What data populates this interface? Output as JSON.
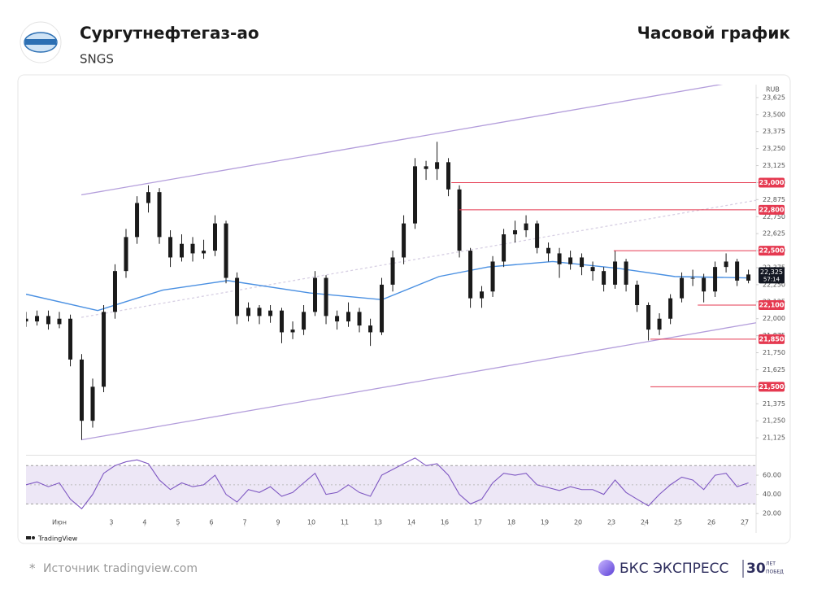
{
  "header": {
    "title": "Сургутнефтегаз-ао",
    "ticker": "SNGS",
    "chart_kind": "Часовой график"
  },
  "footer": {
    "asterisk": "*",
    "source": "Источник tradingview.com",
    "brand": "БКС ЭКСПРЕСС",
    "anniversary": "30",
    "anniversary_word1": "ЛЕТ",
    "anniversary_word2": "ПОБЕД"
  },
  "chart_data": {
    "type": "candlestick",
    "currency": "RUB",
    "watermark": "TradingView",
    "color": "#1a1a1a",
    "xlim": [
      -1,
      20.9
    ],
    "ylim": [
      21.0,
      23.72
    ],
    "xticks": [
      {
        "value": 0,
        "label": "Июн"
      },
      {
        "value": 1.56,
        "label": "3"
      },
      {
        "value": 2.56,
        "label": "4"
      },
      {
        "value": 3.56,
        "label": "5"
      },
      {
        "value": 4.56,
        "label": "6"
      },
      {
        "value": 5.56,
        "label": "7"
      },
      {
        "value": 6.56,
        "label": "9"
      },
      {
        "value": 7.56,
        "label": "10"
      },
      {
        "value": 8.56,
        "label": "11"
      },
      {
        "value": 9.56,
        "label": "13"
      },
      {
        "value": 10.56,
        "label": "14"
      },
      {
        "value": 11.56,
        "label": "16"
      },
      {
        "value": 12.56,
        "label": "17"
      },
      {
        "value": 13.56,
        "label": "18"
      },
      {
        "value": 14.56,
        "label": "19"
      },
      {
        "value": 15.56,
        "label": "20"
      },
      {
        "value": 16.56,
        "label": "23"
      },
      {
        "value": 17.56,
        "label": "24"
      },
      {
        "value": 18.56,
        "label": "25"
      },
      {
        "value": 19.56,
        "label": "26"
      },
      {
        "value": 20.56,
        "label": "27"
      }
    ],
    "yticks": [
      {
        "value": 21.125,
        "label": "21,125"
      },
      {
        "value": 21.25,
        "label": "21,250"
      },
      {
        "value": 21.375,
        "label": "21,375"
      },
      {
        "value": 21.5,
        "label": "21,500"
      },
      {
        "value": 21.625,
        "label": "21,625"
      },
      {
        "value": 21.75,
        "label": "21,750"
      },
      {
        "value": 21.875,
        "label": "21,875"
      },
      {
        "value": 22.0,
        "label": "22,000"
      },
      {
        "value": 22.125,
        "label": "22,125"
      },
      {
        "value": 22.25,
        "label": "22,250"
      },
      {
        "value": 22.375,
        "label": "22,375"
      },
      {
        "value": 22.5,
        "label": "22,500"
      },
      {
        "value": 22.625,
        "label": "22,625"
      },
      {
        "value": 22.75,
        "label": "22,750"
      },
      {
        "value": 22.875,
        "label": "22,875"
      },
      {
        "value": 23.0,
        "label": "23,000"
      },
      {
        "value": 23.125,
        "label": "23,125"
      },
      {
        "value": 23.25,
        "label": "23,250"
      },
      {
        "value": 23.375,
        "label": "23,375"
      },
      {
        "value": 23.5,
        "label": "23,500"
      },
      {
        "value": 23.625,
        "label": "23,625"
      }
    ],
    "candles": [
      [
        -1,
        22.0,
        22.05,
        21.94,
        21.98
      ],
      [
        -0.67,
        21.98,
        22.06,
        21.95,
        22.02
      ],
      [
        -0.33,
        22.02,
        22.06,
        21.92,
        21.96
      ],
      [
        0,
        21.96,
        22.05,
        21.93,
        22.0
      ],
      [
        0.33,
        22.0,
        22.03,
        21.65,
        21.7
      ],
      [
        0.67,
        21.7,
        21.74,
        21.11,
        21.25
      ],
      [
        1,
        21.25,
        21.56,
        21.2,
        21.5
      ],
      [
        1.33,
        21.5,
        22.1,
        21.46,
        22.05
      ],
      [
        1.67,
        22.05,
        22.4,
        22.0,
        22.35
      ],
      [
        2,
        22.35,
        22.66,
        22.3,
        22.6
      ],
      [
        2.33,
        22.6,
        22.9,
        22.55,
        22.85
      ],
      [
        2.67,
        22.85,
        22.98,
        22.78,
        22.93
      ],
      [
        3,
        22.93,
        22.96,
        22.55,
        22.6
      ],
      [
        3.33,
        22.6,
        22.65,
        22.38,
        22.45
      ],
      [
        3.67,
        22.45,
        22.62,
        22.42,
        22.55
      ],
      [
        4,
        22.55,
        22.6,
        22.42,
        22.48
      ],
      [
        4.33,
        22.48,
        22.58,
        22.44,
        22.5
      ],
      [
        4.67,
        22.5,
        22.76,
        22.46,
        22.7
      ],
      [
        5,
        22.7,
        22.72,
        22.26,
        22.3
      ],
      [
        5.33,
        22.3,
        22.34,
        21.96,
        22.02
      ],
      [
        5.67,
        22.02,
        22.12,
        21.98,
        22.08
      ],
      [
        6,
        22.08,
        22.1,
        21.96,
        22.02
      ],
      [
        6.33,
        22.02,
        22.1,
        21.97,
        22.06
      ],
      [
        6.67,
        22.06,
        22.08,
        21.82,
        21.9
      ],
      [
        7,
        21.9,
        21.98,
        21.85,
        21.92
      ],
      [
        7.33,
        21.92,
        22.1,
        21.88,
        22.05
      ],
      [
        7.67,
        22.05,
        22.35,
        22.02,
        22.3
      ],
      [
        8,
        22.3,
        22.32,
        21.96,
        22.02
      ],
      [
        8.33,
        22.02,
        22.06,
        21.92,
        21.98
      ],
      [
        8.67,
        21.98,
        22.12,
        21.94,
        22.05
      ],
      [
        9,
        22.05,
        22.08,
        21.9,
        21.95
      ],
      [
        9.33,
        21.95,
        22.0,
        21.8,
        21.9
      ],
      [
        9.67,
        21.9,
        22.3,
        21.88,
        22.25
      ],
      [
        10,
        22.25,
        22.5,
        22.2,
        22.45
      ],
      [
        10.33,
        22.45,
        22.76,
        22.4,
        22.7
      ],
      [
        10.67,
        22.7,
        23.18,
        22.66,
        23.12
      ],
      [
        11,
        23.12,
        23.16,
        23.02,
        23.1
      ],
      [
        11.33,
        23.1,
        23.3,
        23.02,
        23.15
      ],
      [
        11.67,
        23.15,
        23.18,
        22.9,
        22.95
      ],
      [
        12,
        22.95,
        22.98,
        22.45,
        22.5
      ],
      [
        12.33,
        22.5,
        22.52,
        22.08,
        22.15
      ],
      [
        12.67,
        22.15,
        22.24,
        22.08,
        22.2
      ],
      [
        13,
        22.2,
        22.46,
        22.16,
        22.42
      ],
      [
        13.33,
        22.42,
        22.66,
        22.38,
        22.62
      ],
      [
        13.67,
        22.62,
        22.72,
        22.56,
        22.65
      ],
      [
        14,
        22.65,
        22.76,
        22.6,
        22.7
      ],
      [
        14.33,
        22.7,
        22.72,
        22.48,
        22.52
      ],
      [
        14.67,
        22.52,
        22.56,
        22.42,
        22.48
      ],
      [
        15,
        22.48,
        22.52,
        22.3,
        22.4
      ],
      [
        15.33,
        22.4,
        22.5,
        22.36,
        22.45
      ],
      [
        15.67,
        22.45,
        22.48,
        22.32,
        22.38
      ],
      [
        16,
        22.38,
        22.42,
        22.28,
        22.35
      ],
      [
        16.33,
        22.35,
        22.38,
        22.2,
        22.25
      ],
      [
        16.67,
        22.25,
        22.5,
        22.22,
        22.42
      ],
      [
        17,
        22.42,
        22.44,
        22.2,
        22.25
      ],
      [
        17.33,
        22.25,
        22.28,
        22.05,
        22.1
      ],
      [
        17.67,
        22.1,
        22.12,
        21.84,
        21.92
      ],
      [
        18,
        21.92,
        22.04,
        21.88,
        22.0
      ],
      [
        18.33,
        22.0,
        22.18,
        21.96,
        22.15
      ],
      [
        18.67,
        22.15,
        22.34,
        22.12,
        22.3
      ],
      [
        19,
        22.3,
        22.36,
        22.24,
        22.3
      ],
      [
        19.33,
        22.3,
        22.33,
        22.12,
        22.2
      ],
      [
        19.67,
        22.2,
        22.42,
        22.16,
        22.38
      ],
      [
        20,
        22.38,
        22.48,
        22.34,
        22.42
      ],
      [
        20.33,
        22.42,
        22.44,
        22.24,
        22.28
      ],
      [
        20.67,
        22.28,
        22.36,
        22.26,
        22.325
      ]
    ],
    "ma": {
      "color": "#4a90e2",
      "x": [
        -1,
        1.15,
        3.1,
        5.05,
        7.49,
        9.68,
        11.39,
        12.85,
        14.8,
        16.76,
        18.46,
        20.61
      ],
      "values": [
        22.18,
        22.06,
        22.21,
        22.28,
        22.19,
        22.14,
        22.31,
        22.38,
        22.42,
        22.37,
        22.31,
        22.3
      ]
    },
    "trend_lines": [
      {
        "color": "#b39ddb",
        "dashed": false,
        "x": [
          0.66,
          20.05
        ],
        "values": [
          22.91,
          23.73
        ]
      },
      {
        "color": "#b39ddb",
        "dashed": false,
        "x": [
          0.66,
          20.9
        ],
        "values": [
          21.11,
          21.97
        ]
      },
      {
        "color": "#d7cfe3",
        "dashed": true,
        "x": [
          0.66,
          20.9
        ],
        "values": [
          22.01,
          22.87
        ]
      }
    ],
    "levels": [
      {
        "value": 23.0,
        "label": "23,000",
        "from": 11.76
      },
      {
        "value": 22.8,
        "label": "22,800",
        "from": 12.0
      },
      {
        "value": 22.5,
        "label": "22,500",
        "from": 16.63
      },
      {
        "value": 22.1,
        "label": "22,100",
        "from": 19.15
      },
      {
        "value": 21.85,
        "label": "21,850",
        "from": 17.73
      },
      {
        "value": 21.5,
        "label": "21,500",
        "from": 17.73
      }
    ],
    "level_color": "#e53950",
    "current": {
      "value": 22.325,
      "label": "22,325",
      "timer": "57:14"
    },
    "rsi": {
      "color": "#7e57c2",
      "ylim": [
        10,
        80
      ],
      "bands": [
        30,
        70
      ],
      "midline": 50,
      "yticks": [
        {
          "value": 20,
          "label": "20.00"
        },
        {
          "value": 40,
          "label": "40.00"
        },
        {
          "value": 60,
          "label": "60.00"
        }
      ],
      "values": [
        50,
        53,
        48,
        52,
        35,
        25,
        40,
        62,
        70,
        74,
        76,
        72,
        55,
        45,
        52,
        48,
        50,
        60,
        40,
        32,
        45,
        42,
        48,
        38,
        42,
        52,
        62,
        40,
        42,
        50,
        42,
        38,
        60,
        66,
        72,
        78,
        70,
        72,
        60,
        40,
        30,
        35,
        52,
        62,
        60,
        62,
        50,
        47,
        44,
        48,
        45,
        45,
        40,
        55,
        42,
        35,
        28,
        40,
        50,
        58,
        55,
        45,
        60,
        62,
        48,
        52
      ]
    }
  }
}
